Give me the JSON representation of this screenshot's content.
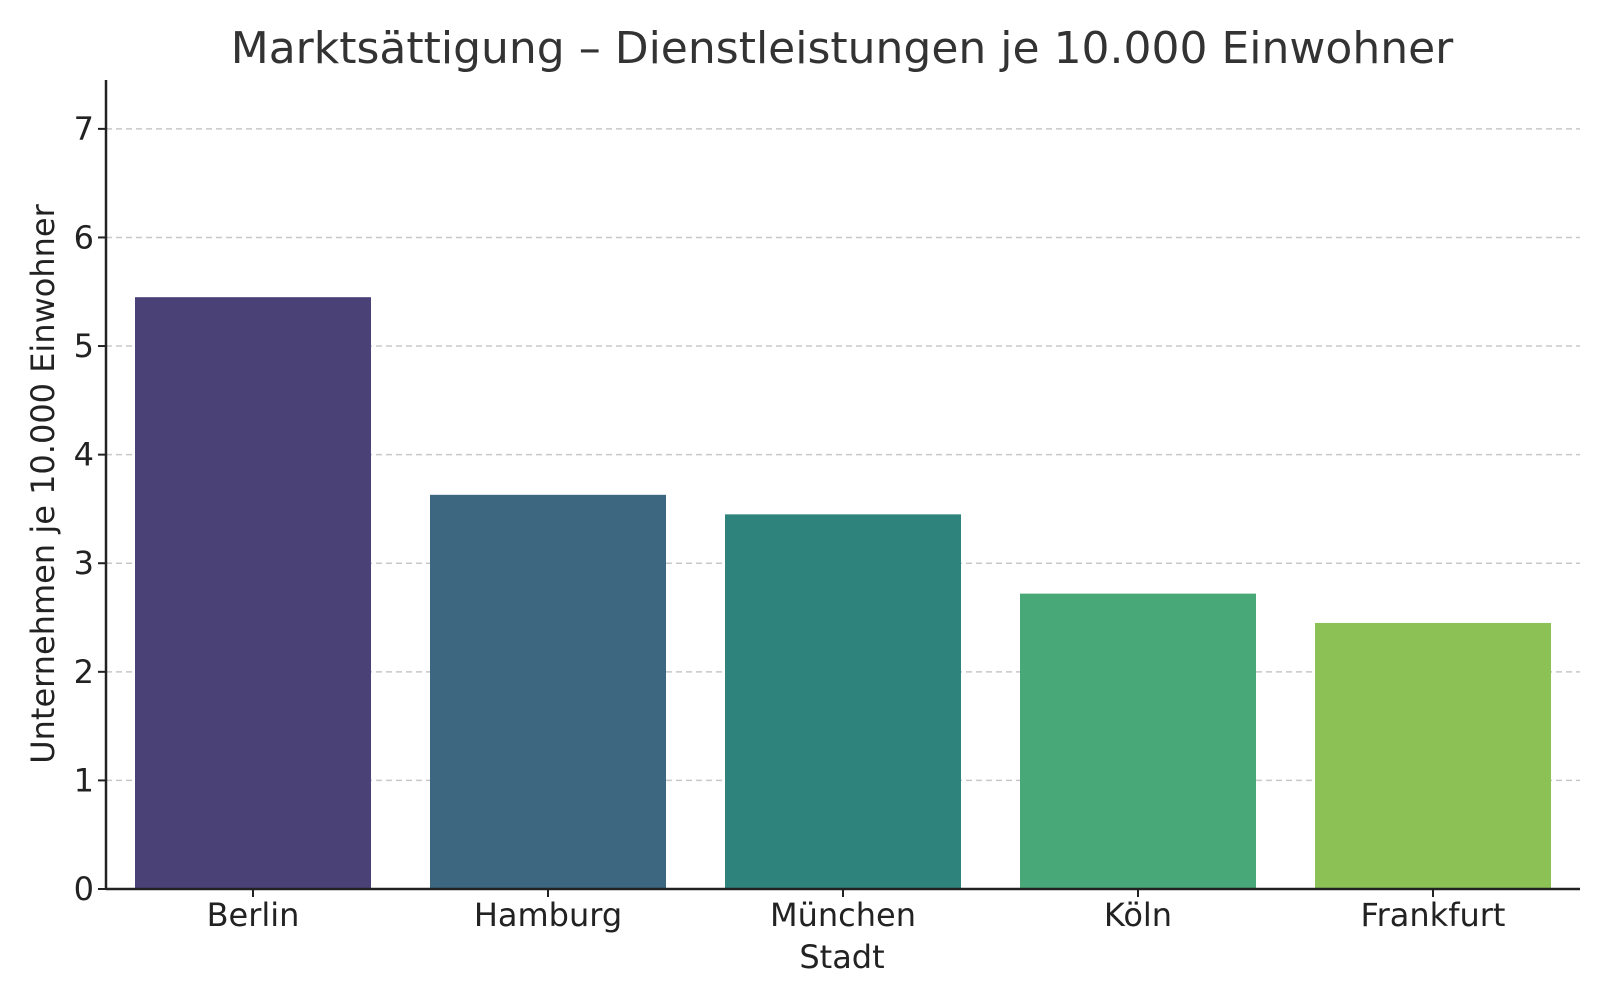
{
  "chart_data": {
    "type": "bar",
    "title": "Marktsättigung – Dienstleistungen je 10.000 Einwohner",
    "xlabel": "Stadt",
    "ylabel": "Unternehmen je 10.000 Einwohner",
    "categories": [
      "Berlin",
      "Hamburg",
      "München",
      "Köln",
      "Frankfurt"
    ],
    "values": [
      5.45,
      3.63,
      3.45,
      2.72,
      2.45
    ],
    "colors": [
      "#4a4277",
      "#3d6680",
      "#2f837d",
      "#48a878",
      "#8bc155"
    ],
    "ylim": [
      0,
      7.45
    ],
    "yticks": [
      0,
      1,
      2,
      3,
      4,
      5,
      6,
      7
    ],
    "grid": "horizontal-dashed",
    "legend": "none"
  }
}
